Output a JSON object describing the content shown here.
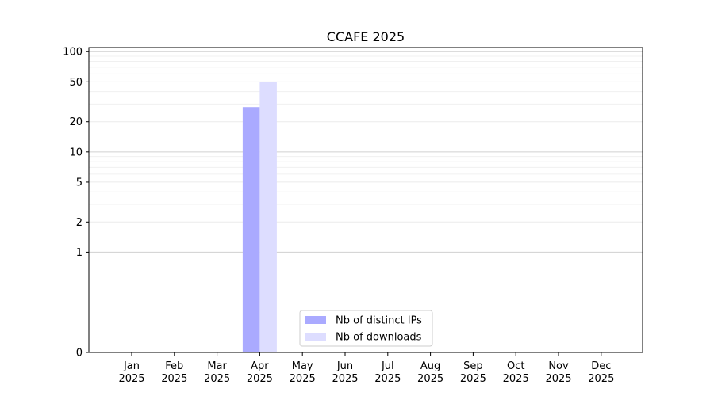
{
  "chart_data": {
    "type": "bar",
    "title": "CCAFE 2025",
    "xlabel": "",
    "ylabel": "",
    "categories": [
      [
        "Jan",
        "2025"
      ],
      [
        "Feb",
        "2025"
      ],
      [
        "Mar",
        "2025"
      ],
      [
        "Apr",
        "2025"
      ],
      [
        "May",
        "2025"
      ],
      [
        "Jun",
        "2025"
      ],
      [
        "Jul",
        "2025"
      ],
      [
        "Aug",
        "2025"
      ],
      [
        "Sep",
        "2025"
      ],
      [
        "Oct",
        "2025"
      ],
      [
        "Nov",
        "2025"
      ],
      [
        "Dec",
        "2025"
      ]
    ],
    "series": [
      {
        "name": "Nb of distinct IPs",
        "color": "#aaaaff",
        "values": [
          0,
          0,
          0,
          28,
          0,
          0,
          0,
          0,
          0,
          0,
          0,
          0
        ]
      },
      {
        "name": "Nb of downloads",
        "color": "#ddddff",
        "values": [
          0,
          0,
          0,
          50,
          0,
          0,
          0,
          0,
          0,
          0,
          0,
          0
        ]
      }
    ],
    "yscale": "symlog",
    "ylim": [
      0,
      110
    ],
    "yticks": [
      0,
      1,
      2,
      5,
      10,
      20,
      50,
      100
    ],
    "grid": true,
    "legend_position": "lower center"
  }
}
